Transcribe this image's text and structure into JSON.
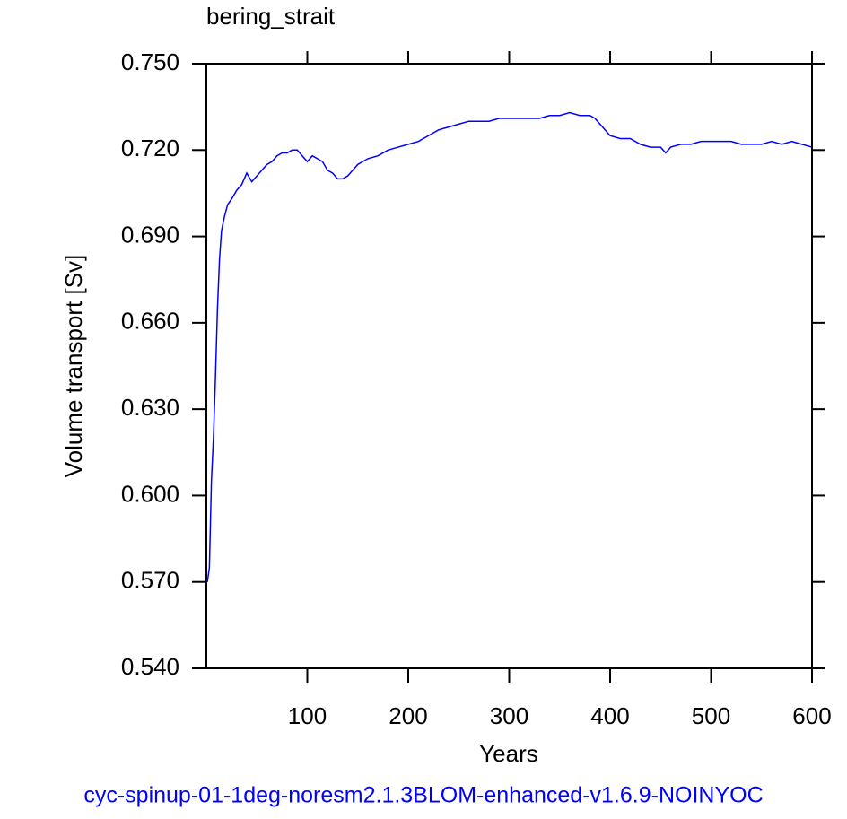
{
  "chart_data": {
    "type": "line",
    "title": "bering_strait",
    "x_label": "Years",
    "y_label": "Volume transport [Sv]",
    "footnote": "cyc-spinup-01-1deg-noresm2.1.3BLOM-enhanced-v1.6.9-NOINYOC",
    "color": "#0000ff",
    "x": [
      1,
      3,
      5,
      7,
      9,
      11,
      13,
      15,
      18,
      21,
      25,
      30,
      35,
      40,
      45,
      50,
      55,
      60,
      65,
      70,
      75,
      80,
      85,
      90,
      95,
      100,
      105,
      110,
      115,
      120,
      125,
      130,
      135,
      140,
      145,
      150,
      160,
      170,
      180,
      190,
      200,
      210,
      220,
      230,
      240,
      250,
      260,
      270,
      280,
      290,
      300,
      310,
      320,
      330,
      340,
      350,
      360,
      370,
      380,
      385,
      390,
      395,
      400,
      410,
      420,
      430,
      440,
      450,
      455,
      460,
      470,
      480,
      490,
      500,
      510,
      520,
      530,
      540,
      550,
      560,
      570,
      580,
      590,
      600
    ],
    "values": [
      0.57,
      0.575,
      0.605,
      0.62,
      0.641,
      0.665,
      0.682,
      0.692,
      0.697,
      0.701,
      0.703,
      0.706,
      0.708,
      0.712,
      0.709,
      0.711,
      0.713,
      0.715,
      0.716,
      0.718,
      0.719,
      0.719,
      0.72,
      0.72,
      0.718,
      0.716,
      0.718,
      0.717,
      0.716,
      0.713,
      0.712,
      0.71,
      0.71,
      0.711,
      0.713,
      0.715,
      0.717,
      0.718,
      0.72,
      0.721,
      0.722,
      0.723,
      0.725,
      0.727,
      0.728,
      0.729,
      0.73,
      0.73,
      0.73,
      0.731,
      0.731,
      0.731,
      0.731,
      0.731,
      0.732,
      0.732,
      0.733,
      0.732,
      0.732,
      0.731,
      0.729,
      0.727,
      0.725,
      0.724,
      0.724,
      0.722,
      0.721,
      0.721,
      0.719,
      0.721,
      0.722,
      0.722,
      0.723,
      0.723,
      0.723,
      0.723,
      0.722,
      0.722,
      0.722,
      0.723,
      0.722,
      0.723,
      0.722,
      0.721
    ],
    "xlim": [
      0,
      600
    ],
    "xticks": [
      100,
      200,
      300,
      400,
      500,
      600
    ],
    "ylim": [
      0.54,
      0.75
    ],
    "yticks": [
      {
        "value": 0.54,
        "label": "0.540"
      },
      {
        "value": 0.57,
        "label": "0.570"
      },
      {
        "value": 0.6,
        "label": "0.600"
      },
      {
        "value": 0.63,
        "label": "0.630"
      },
      {
        "value": 0.66,
        "label": "0.660"
      },
      {
        "value": 0.69,
        "label": "0.690"
      },
      {
        "value": 0.72,
        "label": "0.720"
      },
      {
        "value": 0.75,
        "label": "0.750"
      }
    ],
    "grid": false
  }
}
